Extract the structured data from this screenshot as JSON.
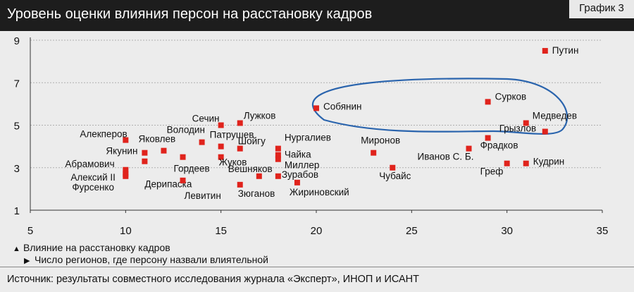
{
  "header": {
    "title": "Уровень оценки влияния персон на расстановку кадров",
    "tag": "График 3"
  },
  "legend": {
    "y_text": "Влияние на расстановку кадров",
    "x_text": "Число регионов, где персону назвали влиятельной"
  },
  "source": "Источник: результаты совместного исследования журнала «Эксперт», ИНОП и ИСАНТ",
  "colors": {
    "marker": "#e0231c",
    "ellipse": "#2a64ad",
    "grid": "#b0b0b0"
  },
  "chart_data": {
    "type": "scatter",
    "xlim": [
      5,
      35
    ],
    "ylim": [
      1,
      9
    ],
    "xticks": [
      5,
      10,
      15,
      20,
      25,
      30,
      35
    ],
    "yticks": [
      1,
      3,
      5,
      7,
      9
    ],
    "grid": "horizontal",
    "points": [
      {
        "label": "Путин",
        "x": 32,
        "y": 8.5
      },
      {
        "label": "Сурков",
        "x": 29,
        "y": 6.1
      },
      {
        "label": "Медведев",
        "x": 32,
        "y": 4.7
      },
      {
        "label": "Грызлов",
        "x": 31,
        "y": 5.1
      },
      {
        "label": "Фрадков",
        "x": 29,
        "y": 4.4
      },
      {
        "label": "Иванов С. Б.",
        "x": 28,
        "y": 3.9
      },
      {
        "label": "Кудрин",
        "x": 31,
        "y": 3.2
      },
      {
        "label": "Греф",
        "x": 30,
        "y": 3.2
      },
      {
        "label": "Собянин",
        "x": 20,
        "y": 5.8
      },
      {
        "label": "Миронов",
        "x": 23,
        "y": 3.7
      },
      {
        "label": "Чубайс",
        "x": 24,
        "y": 3.0
      },
      {
        "label": "Алекперов",
        "x": 10,
        "y": 4.3
      },
      {
        "label": "Якунин",
        "x": 11,
        "y": 3.7
      },
      {
        "label": "Яковлев",
        "x": 12,
        "y": 3.8
      },
      {
        "label": "Абрамович",
        "x": 10,
        "y": 2.9
      },
      {
        "label": "Алексий II",
        "x": 10,
        "y": 2.7
      },
      {
        "label": "Фурсенко",
        "x": 10,
        "y": 2.6
      },
      {
        "label": "Дерипаска",
        "x": 11,
        "y": 3.3
      },
      {
        "label": "Володин",
        "x": 14,
        "y": 4.2
      },
      {
        "label": "Гордеев",
        "x": 13,
        "y": 3.5
      },
      {
        "label": "Левитин",
        "x": 13,
        "y": 2.4
      },
      {
        "label": "Сечин",
        "x": 15,
        "y": 5.0
      },
      {
        "label": "Лужков",
        "x": 16,
        "y": 5.1
      },
      {
        "label": "Патрушев",
        "x": 15,
        "y": 4.0
      },
      {
        "label": "Жуков",
        "x": 15,
        "y": 3.5
      },
      {
        "label": "Шойгу",
        "x": 16,
        "y": 3.9
      },
      {
        "label": "Вешняков",
        "x": 17,
        "y": 2.6
      },
      {
        "label": "Зюганов",
        "x": 16,
        "y": 2.2
      },
      {
        "label": "Нургалиев",
        "x": 18,
        "y": 3.9
      },
      {
        "label": "Чайка",
        "x": 18,
        "y": 3.6
      },
      {
        "label": "Миллер",
        "x": 18,
        "y": 3.4
      },
      {
        "label": "Зурабов",
        "x": 18,
        "y": 2.6
      },
      {
        "label": "Жириновский",
        "x": 19,
        "y": 2.3
      }
    ]
  }
}
